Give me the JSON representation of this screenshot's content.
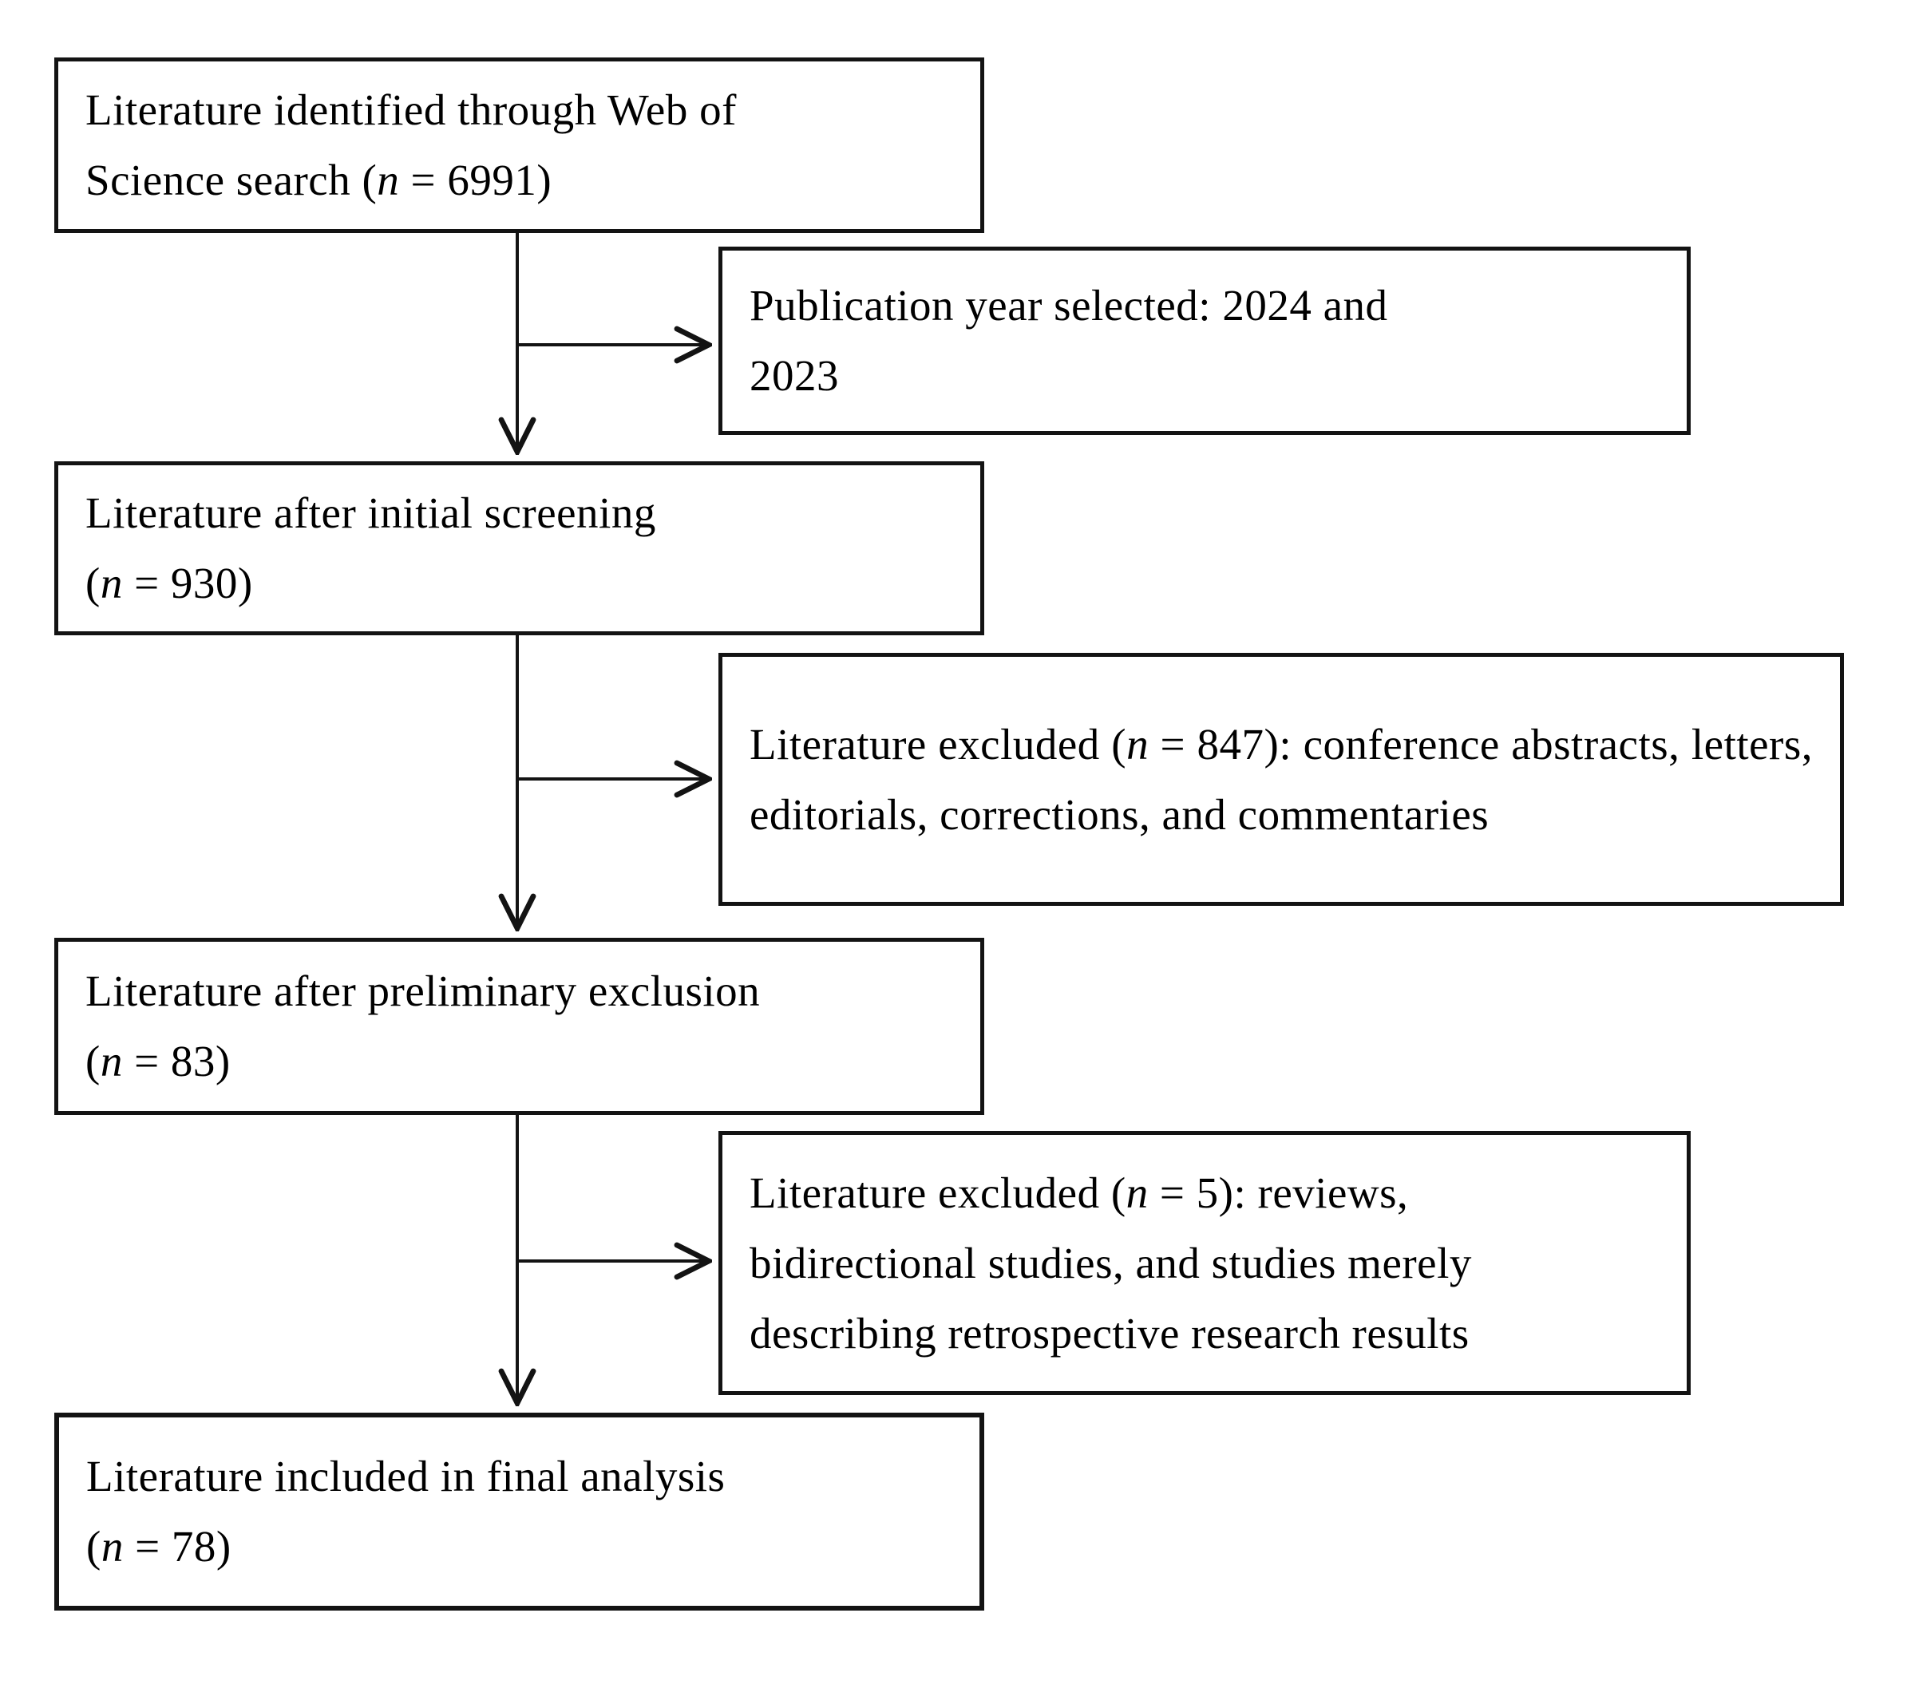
{
  "colors": {
    "ink": "#131313",
    "paper": "#ffffff"
  },
  "flowchart": {
    "main_boxes": [
      {
        "id": "identified",
        "label": "Literature identified through Web of\nScience search (n = 6991)"
      },
      {
        "id": "initial-screening",
        "label": "Literature after initial screening\n(n = 930)"
      },
      {
        "id": "preliminary-exclusion",
        "label": "Literature after preliminary exclusion\n(n = 83)"
      },
      {
        "id": "final-analysis",
        "label": "Literature included in final analysis\n(n = 78)"
      }
    ],
    "side_boxes": [
      {
        "id": "publication-year",
        "label": "Publication year selected: 2024 and\n2023"
      },
      {
        "id": "excluded-847",
        "label": "Literature excluded (n = 847): conference abstracts, letters, editorials, corrections, and commentaries"
      },
      {
        "id": "excluded-5",
        "label": "Literature excluded (n = 5): reviews,\nbidirectional studies, and studies merely\ndescribing retrospective research results"
      }
    ]
  }
}
